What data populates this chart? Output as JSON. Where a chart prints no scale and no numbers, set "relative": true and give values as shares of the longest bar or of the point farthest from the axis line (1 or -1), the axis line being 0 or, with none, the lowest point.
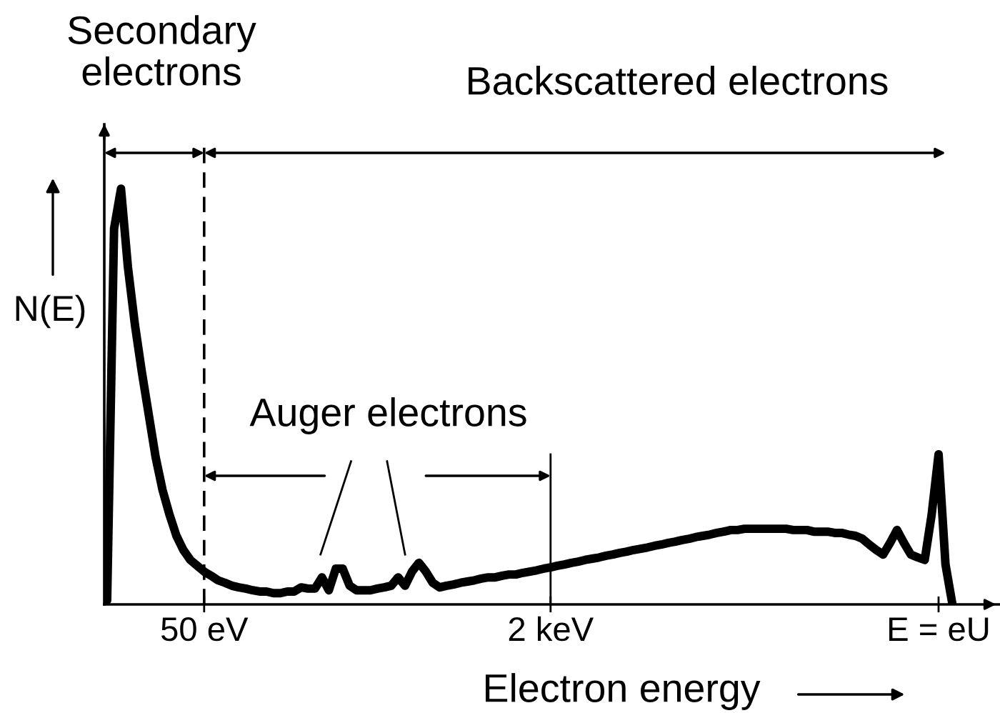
{
  "chart_data": {
    "type": "line",
    "relative": true,
    "xlabel": "Electron energy",
    "ylabel": "N(E)",
    "line_style": "solid",
    "categories": [
      null,
      null,
      null,
      null,
      null,
      null,
      null,
      null,
      null,
      null,
      null,
      null,
      null,
      null,
      "50 eV",
      null,
      null,
      null,
      null,
      null,
      null,
      null,
      null,
      null,
      null,
      null,
      null,
      null,
      null,
      null,
      null,
      null,
      null,
      null,
      null,
      null,
      null,
      null,
      null,
      null,
      null,
      null,
      null,
      null,
      null,
      null,
      null,
      null,
      null,
      null,
      null,
      null,
      null,
      null,
      null,
      null,
      null,
      null,
      null,
      null,
      null,
      null,
      null,
      null,
      "2 keV",
      null,
      null,
      null,
      null,
      null,
      null,
      null,
      null,
      null,
      null,
      null,
      null,
      null,
      null,
      null,
      null,
      null,
      null,
      null,
      null,
      null,
      null,
      null,
      null,
      null,
      null,
      null,
      null,
      null,
      null,
      null,
      null,
      null,
      null,
      null,
      null,
      null,
      null,
      null,
      null,
      null,
      null,
      null,
      null,
      null,
      null,
      null,
      null,
      null,
      null,
      null,
      null,
      null,
      null,
      null,
      "E = eU",
      null,
      null
    ],
    "series": [
      {
        "color": "#000000",
        "values": [
          0.01,
          0.904,
          1,
          0.811,
          0.674,
          0.56,
          0.457,
          0.354,
          0.275,
          0.216,
          0.165,
          0.131,
          0.107,
          0.093,
          0.079,
          0.069,
          0.058,
          0.052,
          0.045,
          0.041,
          0.038,
          0.034,
          0.031,
          0.031,
          0.027,
          0.027,
          0.031,
          0.031,
          0.041,
          0.038,
          0.038,
          0.065,
          0.034,
          0.086,
          0.086,
          0.045,
          0.034,
          0.034,
          0.034,
          0.038,
          0.041,
          0.045,
          0.065,
          0.045,
          0.079,
          0.1,
          0.079,
          0.052,
          0.041,
          0.045,
          0.048,
          0.052,
          0.055,
          0.058,
          0.062,
          0.065,
          0.065,
          0.069,
          0.072,
          0.072,
          0.076,
          0.079,
          0.082,
          0.086,
          0.089,
          0.093,
          0.096,
          0.1,
          0.103,
          0.107,
          0.11,
          0.113,
          0.117,
          0.12,
          0.124,
          0.127,
          0.131,
          0.134,
          0.137,
          0.141,
          0.144,
          0.148,
          0.151,
          0.155,
          0.158,
          0.162,
          0.165,
          0.168,
          0.172,
          0.175,
          0.179,
          0.179,
          0.182,
          0.182,
          0.182,
          0.182,
          0.182,
          0.182,
          0.182,
          0.179,
          0.179,
          0.179,
          0.175,
          0.175,
          0.175,
          0.172,
          0.172,
          0.168,
          0.165,
          0.158,
          0.144,
          0.131,
          0.12,
          0.148,
          0.179,
          0.148,
          0.12,
          0.113,
          0.107,
          0.216,
          0.361,
          0.096,
          0
        ]
      }
    ],
    "ref_lines": [
      {
        "axis": "x",
        "value": "50 eV",
        "line_style": "dashed",
        "color": "#000000"
      }
    ],
    "annotations": [
      "Secondary\nelectrons",
      "Backscattered electrons",
      "Auger electrons"
    ]
  }
}
